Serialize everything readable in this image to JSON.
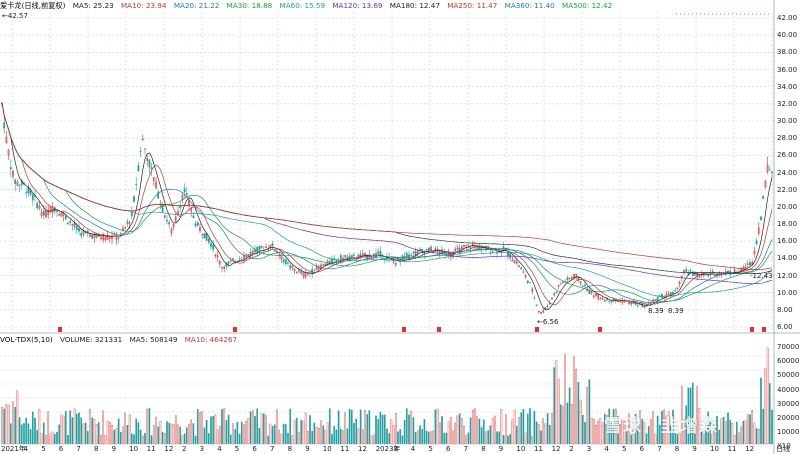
{
  "legend": {
    "title": "爱卡龙(日线,前复权)",
    "items": [
      {
        "label": "MA5: 25.23",
        "color": "#222222"
      },
      {
        "label": "MA10: 23.94",
        "color": "#c0392b"
      },
      {
        "label": "MA20: 21.22",
        "color": "#1f77d0"
      },
      {
        "label": "MA30: 18.88",
        "color": "#1a9f3a"
      },
      {
        "label": "MA60: 15.59",
        "color": "#1f9f9f"
      },
      {
        "label": "MA120: 13.69",
        "color": "#6a2fb5"
      },
      {
        "label": "MA180: 12.47",
        "color": "#222222"
      },
      {
        "label": "MA250: 11.47",
        "color": "#c0392b"
      },
      {
        "label": "MA360: 11.40",
        "color": "#1f77d0"
      },
      {
        "label": "MA500: 12.42",
        "color": "#1a9f3a"
      }
    ]
  },
  "annotations": {
    "high": "42.57",
    "low": "6.56",
    "low2a": "8.39",
    "low2b": "8.39",
    "right": "12.43"
  },
  "price_axis": [
    "42.00",
    "40.00",
    "38.00",
    "36.00",
    "34.00",
    "32.00",
    "30.00",
    "28.00",
    "26.00",
    "24.00",
    "22.00",
    "20.00",
    "18.00",
    "16.00",
    "14.00",
    "12.00",
    "10.00",
    "8.00",
    "6.00"
  ],
  "volume_legend": {
    "title": "VOL-TDX(5,10)",
    "volume": "VOLUME: 321331",
    "ma5": "MA5: 508149",
    "ma10": "MA10: 464267"
  },
  "volume_axis": [
    "70000",
    "60000",
    "50000",
    "40000",
    "30000",
    "20000",
    "10000",
    "X10"
  ],
  "x_axis": [
    "2021年",
    "4",
    "5",
    "6",
    "7",
    "8",
    "9",
    "10",
    "11",
    "12",
    "2",
    "3",
    "4",
    "5",
    "6",
    "7",
    "8",
    "9",
    "10",
    "11",
    "12",
    "2023年",
    "3",
    "4",
    "5",
    "6",
    "7",
    "8",
    "9",
    "10",
    "11",
    "12",
    "2",
    "3",
    "4",
    "5",
    "6",
    "7",
    "8",
    "9",
    "10",
    "11",
    "12",
    "日线"
  ],
  "watermark": "雪球：韭增森",
  "colors": {
    "up": "#e03030",
    "down": "#1f9f9f",
    "grid": "#b8dcd8"
  }
}
